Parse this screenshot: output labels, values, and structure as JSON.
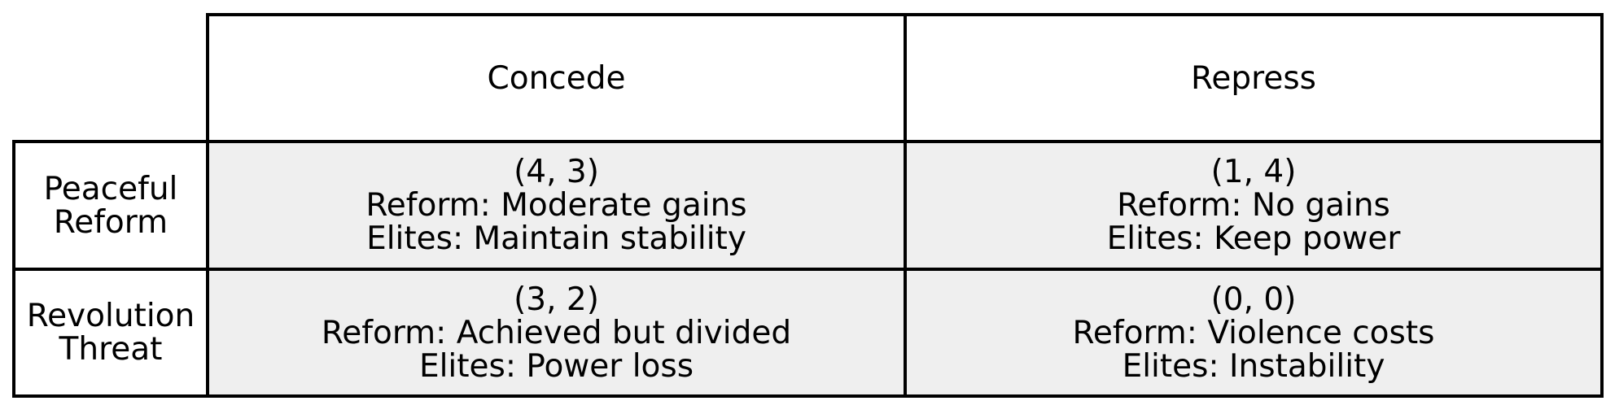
{
  "columns": [
    "Concede",
    "Repress"
  ],
  "rows": [
    {
      "label_line1": "Peaceful",
      "label_line2": "Reform",
      "cells": [
        {
          "payoff": "(4, 3)",
          "reform": "Reform: Moderate gains",
          "elites": "Elites: Maintain stability"
        },
        {
          "payoff": "(1, 4)",
          "reform": "Reform: No gains",
          "elites": "Elites: Keep power"
        }
      ]
    },
    {
      "label_line1": "Revolution",
      "label_line2": "Threat",
      "cells": [
        {
          "payoff": "(3, 2)",
          "reform": "Reform: Achieved but divided",
          "elites": "Elites: Power loss"
        },
        {
          "payoff": "(0, 0)",
          "reform": "Reform: Violence costs",
          "elites": "Elites: Instability"
        }
      ]
    }
  ],
  "colors": {
    "grid": "#000000",
    "payoff_fill": "#efefef",
    "header_fill": "#ffffff"
  }
}
